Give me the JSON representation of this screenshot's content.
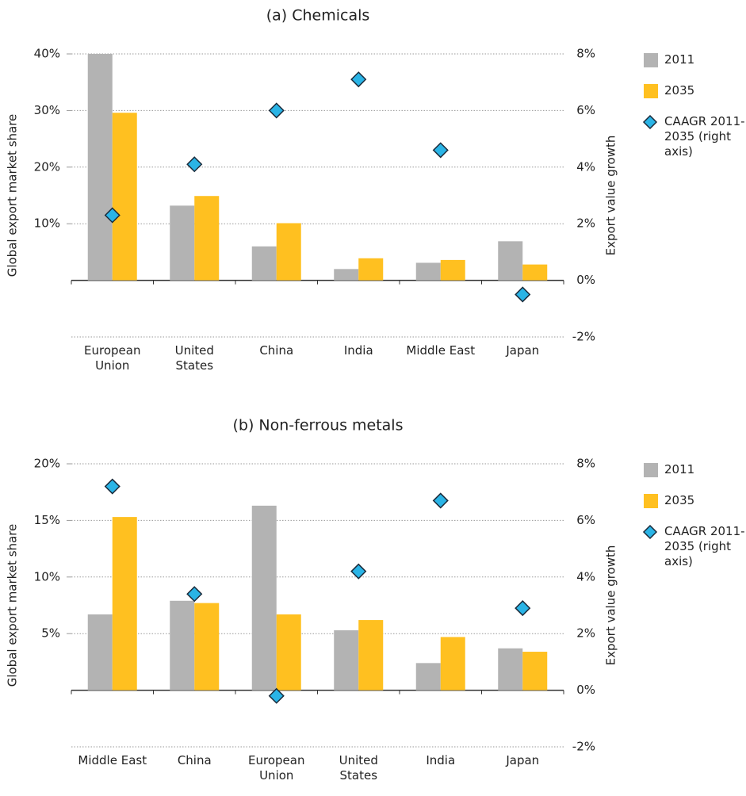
{
  "chart_data": [
    {
      "type": "bar",
      "title": "(a) Chemicals",
      "categories": [
        "European Union",
        "United States",
        "China",
        "India",
        "Middle East",
        "Japan"
      ],
      "series": [
        {
          "name": "2011",
          "color": "#b3b3b3",
          "values": [
            40,
            13.2,
            6.0,
            2.0,
            3.1,
            6.9
          ]
        },
        {
          "name": "2035",
          "color": "#ffc020",
          "values": [
            29.6,
            14.9,
            10.1,
            3.9,
            3.6,
            2.8
          ]
        },
        {
          "name": "CAAGR 2011-2035 (right axis)",
          "color": "#2ab4e6",
          "marker": "diamond",
          "axis": "y2",
          "values": [
            2.3,
            4.1,
            6.0,
            7.1,
            4.6,
            -0.5
          ]
        }
      ],
      "ylabel": "Global export market share",
      "y2label": "Export value growth",
      "ylim": [
        -10,
        40
      ],
      "yticks": [
        {
          "value": 10,
          "label": "10%"
        },
        {
          "value": 20,
          "label": "20%"
        },
        {
          "value": 30,
          "label": "30%"
        },
        {
          "value": 40,
          "label": "40%"
        }
      ],
      "y2lim": [
        -2,
        8
      ],
      "y2ticks": [
        {
          "value": -2,
          "label": "-2%"
        },
        {
          "value": 0,
          "label": "0%"
        },
        {
          "value": 2,
          "label": "2%"
        },
        {
          "value": 4,
          "label": "4%"
        },
        {
          "value": 6,
          "label": "6%"
        },
        {
          "value": 8,
          "label": "8%"
        }
      ],
      "grid": true
    },
    {
      "type": "bar",
      "title": "(b) Non-ferrous metals",
      "categories": [
        "Middle East",
        "China",
        "European Union",
        "United States",
        "India",
        "Japan"
      ],
      "series": [
        {
          "name": "2011",
          "color": "#b3b3b3",
          "values": [
            6.7,
            7.9,
            16.3,
            5.3,
            2.4,
            3.7
          ]
        },
        {
          "name": "2035",
          "color": "#ffc020",
          "values": [
            15.3,
            7.7,
            6.7,
            6.2,
            4.7,
            3.4
          ]
        },
        {
          "name": "CAAGR 2011-2035 (right axis)",
          "color": "#2ab4e6",
          "marker": "diamond",
          "axis": "y2",
          "values": [
            7.2,
            3.4,
            -0.2,
            4.2,
            6.7,
            2.9
          ]
        }
      ],
      "ylabel": "Global export market share",
      "y2label": "Export value growth",
      "ylim": [
        -5,
        20
      ],
      "yticks": [
        {
          "value": 5,
          "label": "5%"
        },
        {
          "value": 10,
          "label": "10%"
        },
        {
          "value": 15,
          "label": "15%"
        },
        {
          "value": 20,
          "label": "20%"
        }
      ],
      "y2lim": [
        -2,
        8
      ],
      "y2ticks": [
        {
          "value": -2,
          "label": "-2%"
        },
        {
          "value": 0,
          "label": "0%"
        },
        {
          "value": 2,
          "label": "2%"
        },
        {
          "value": 4,
          "label": "4%"
        },
        {
          "value": 6,
          "label": "6%"
        },
        {
          "value": 8,
          "label": "8%"
        }
      ],
      "grid": true
    }
  ]
}
